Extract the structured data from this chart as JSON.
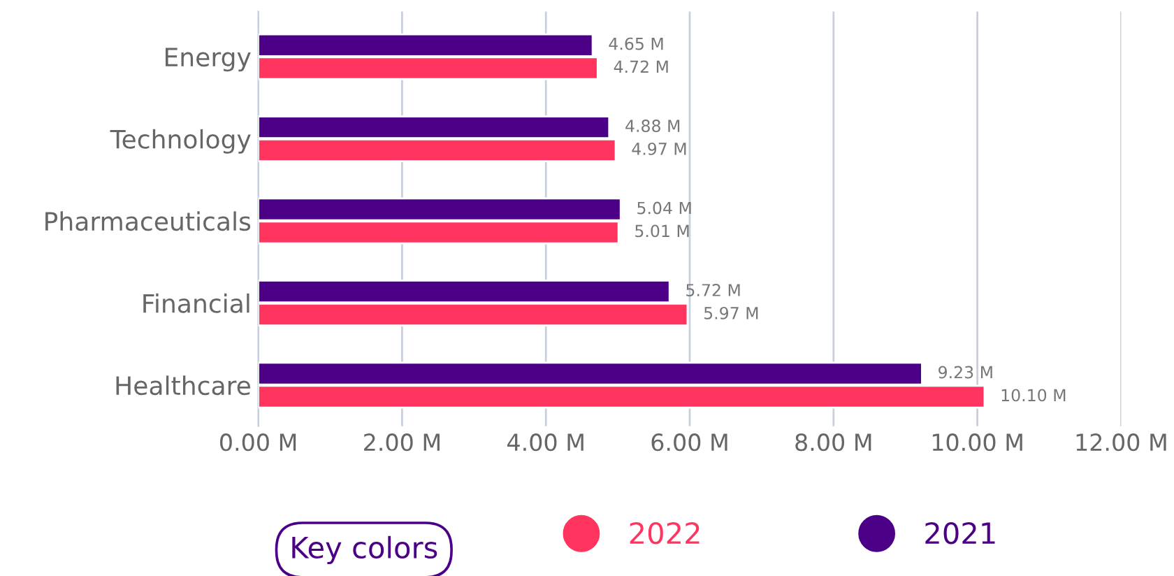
{
  "chart_data": {
    "type": "bar",
    "orientation": "horizontal",
    "categories": [
      "Energy",
      "Technology",
      "Pharmaceuticals",
      "Financial",
      "Healthcare"
    ],
    "series": [
      {
        "name": "2022",
        "color": "#ff3560",
        "values": [
          4.72,
          4.97,
          5.01,
          5.97,
          10.1
        ],
        "value_labels": [
          "4.72 M",
          "4.97 M",
          "5.01 M",
          "5.97 M",
          "10.10 M"
        ]
      },
      {
        "name": "2021",
        "color": "#4c0088",
        "values": [
          4.65,
          4.88,
          5.04,
          5.72,
          9.23
        ],
        "value_labels": [
          "4.65 M",
          "4.88 M",
          "5.04 M",
          "5.72 M",
          "9.23 M"
        ]
      }
    ],
    "xlim": [
      0,
      12
    ],
    "xticks": [
      {
        "value": 0,
        "label": "0.00 M"
      },
      {
        "value": 2,
        "label": "2.00 M"
      },
      {
        "value": 4,
        "label": "4.00 M"
      },
      {
        "value": 6,
        "label": "6.00 M"
      },
      {
        "value": 8,
        "label": "8.00 M"
      },
      {
        "value": 10,
        "label": "10.00 M"
      },
      {
        "value": 12,
        "label": "12.00 M"
      }
    ],
    "grid": "x",
    "legend": "bottom",
    "legend_title": "Key colors"
  }
}
